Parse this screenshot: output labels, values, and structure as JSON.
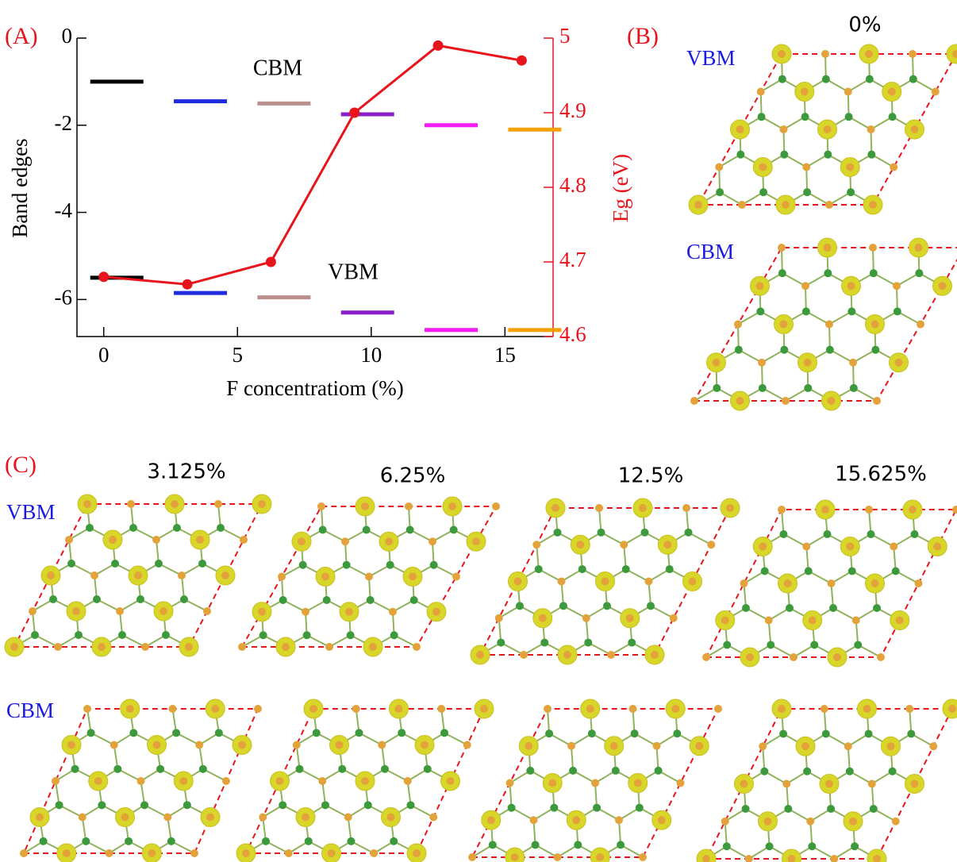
{
  "chart_data": {
    "type": "line",
    "label": "(A)",
    "xlabel": "F concentratiom (%)",
    "ylabel": "Band edges",
    "y2label": "Eg (eV)",
    "x": [
      0,
      3.125,
      6.25,
      9.375,
      12.5,
      15.625
    ],
    "xlim": [
      -1,
      16.8
    ],
    "xticks": [
      0,
      5,
      10,
      15
    ],
    "ylim": [
      -6.85,
      0
    ],
    "yticks": [
      0,
      -2,
      -4,
      -6
    ],
    "y2lim": [
      4.6,
      5
    ],
    "y2ticks": [
      4.6,
      4.7,
      4.8,
      4.9,
      5
    ],
    "y2color": "#e8141c",
    "segment_colors": [
      "#000000",
      "#1f2bdf",
      "#bc8f8f",
      "#8a1fc8",
      "#f41cf4",
      "#f7a10a"
    ],
    "series": [
      {
        "name": "CBM",
        "type": "segment",
        "values": [
          -1.0,
          -1.45,
          -1.5,
          -1.75,
          -2.0,
          -2.1
        ]
      },
      {
        "name": "VBM",
        "type": "segment",
        "values": [
          -5.5,
          -5.85,
          -5.95,
          -6.3,
          -6.7,
          -6.7
        ]
      },
      {
        "type": "line",
        "axis": "y2",
        "color": "#e8141c",
        "values": [
          4.68,
          4.67,
          4.7,
          4.9,
          4.99,
          4.97
        ]
      }
    ]
  },
  "figure": {
    "panel_b": {
      "label": "(B)",
      "title": "0%",
      "rows": [
        "VBM",
        "CBM"
      ]
    },
    "panel_c": {
      "label": "(C)",
      "titles": [
        "3.125%",
        "6.25%",
        "12.5%",
        "15.625%"
      ],
      "rows": [
        "VBM",
        "CBM"
      ]
    }
  }
}
